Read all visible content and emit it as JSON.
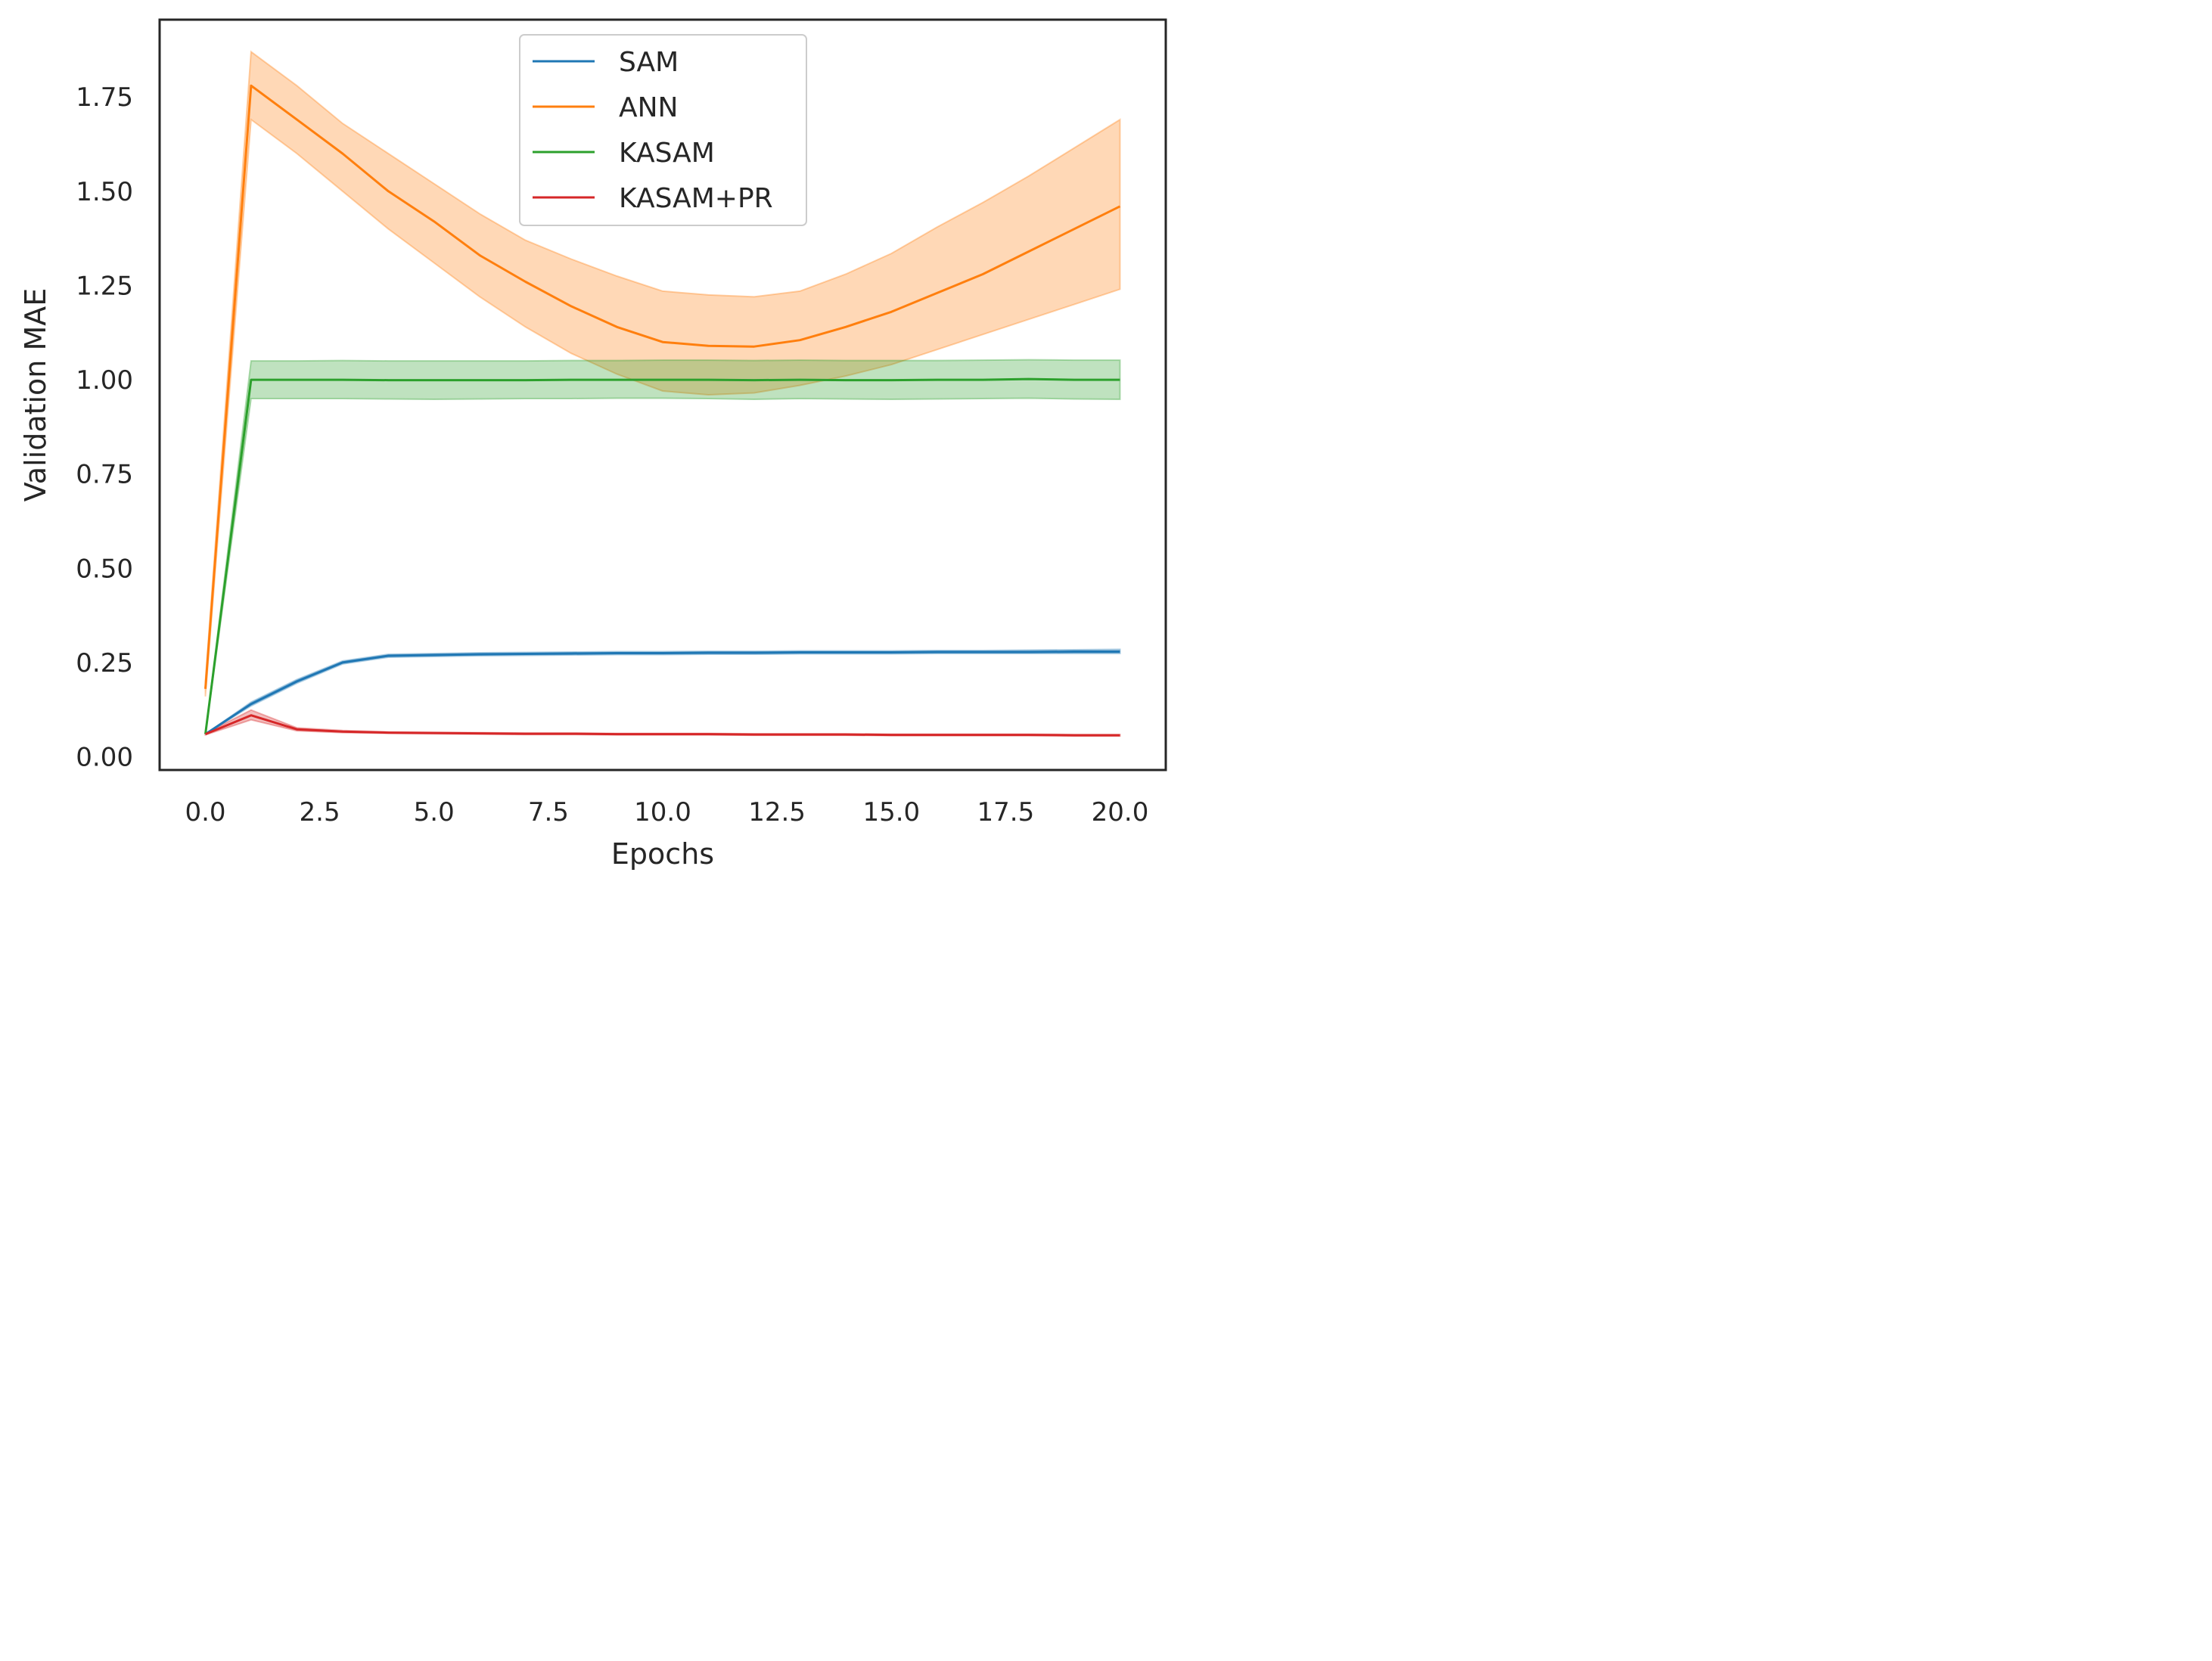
{
  "chart_data": {
    "type": "line",
    "title": "",
    "xlabel": "Epochs",
    "ylabel": "Validation MAE",
    "xlim": [
      -1.0,
      21.0
    ],
    "ylim": [
      -0.035,
      1.955
    ],
    "x_ticks": [
      0.0,
      2.5,
      5.0,
      7.5,
      10.0,
      12.5,
      15.0,
      17.5,
      20.0
    ],
    "x_tick_labels": [
      "0.0",
      "2.5",
      "5.0",
      "7.5",
      "10.0",
      "12.5",
      "15.0",
      "17.5",
      "20.0"
    ],
    "y_ticks": [
      0.0,
      0.25,
      0.5,
      0.75,
      1.0,
      1.25,
      1.5,
      1.75
    ],
    "y_tick_labels": [
      "0.00",
      "0.25",
      "0.50",
      "0.75",
      "1.00",
      "1.25",
      "1.50",
      "1.75"
    ],
    "grid": false,
    "legend_position": "top-center",
    "x": [
      0,
      1,
      2,
      3,
      4,
      5,
      6,
      7,
      8,
      9,
      10,
      11,
      12,
      13,
      14,
      15,
      16,
      17,
      18,
      19,
      20
    ],
    "series": [
      {
        "name": "SAM",
        "color": "#1f77b4",
        "values": [
          0.06,
          0.14,
          0.2,
          0.25,
          0.268,
          0.27,
          0.272,
          0.273,
          0.274,
          0.275,
          0.275,
          0.276,
          0.276,
          0.277,
          0.277,
          0.277,
          0.278,
          0.278,
          0.278,
          0.279,
          0.279
        ],
        "lower": [
          0.06,
          0.135,
          0.195,
          0.246,
          0.264,
          0.266,
          0.268,
          0.269,
          0.27,
          0.271,
          0.271,
          0.272,
          0.272,
          0.273,
          0.273,
          0.273,
          0.274,
          0.274,
          0.274,
          0.274,
          0.274
        ],
        "upper": [
          0.06,
          0.145,
          0.205,
          0.254,
          0.272,
          0.274,
          0.276,
          0.277,
          0.278,
          0.279,
          0.279,
          0.28,
          0.28,
          0.281,
          0.281,
          0.281,
          0.282,
          0.282,
          0.283,
          0.284,
          0.285
        ]
      },
      {
        "name": "ANN",
        "color": "#ff7f0e",
        "values": [
          0.18,
          1.78,
          1.69,
          1.6,
          1.5,
          1.42,
          1.33,
          1.26,
          1.195,
          1.14,
          1.1,
          1.09,
          1.088,
          1.105,
          1.14,
          1.18,
          1.23,
          1.28,
          1.34,
          1.4,
          1.46
        ],
        "lower": [
          0.16,
          1.69,
          1.6,
          1.5,
          1.4,
          1.31,
          1.22,
          1.14,
          1.07,
          1.015,
          0.97,
          0.96,
          0.965,
          0.985,
          1.01,
          1.04,
          1.08,
          1.12,
          1.16,
          1.2,
          1.24
        ],
        "upper": [
          0.2,
          1.87,
          1.78,
          1.68,
          1.6,
          1.52,
          1.44,
          1.37,
          1.32,
          1.275,
          1.235,
          1.225,
          1.22,
          1.235,
          1.28,
          1.335,
          1.405,
          1.47,
          1.54,
          1.615,
          1.69
        ]
      },
      {
        "name": "KASAM",
        "color": "#2ca02c",
        "values": [
          0.06,
          1.0,
          1.0,
          1.0,
          0.999,
          0.999,
          0.999,
          0.999,
          1.0,
          1.0,
          1.0,
          1.0,
          0.999,
          1.0,
          0.999,
          0.999,
          1.0,
          1.0,
          1.002,
          1.0,
          1.0
        ],
        "lower": [
          0.06,
          0.95,
          0.95,
          0.95,
          0.949,
          0.948,
          0.949,
          0.95,
          0.95,
          0.951,
          0.951,
          0.95,
          0.948,
          0.95,
          0.949,
          0.948,
          0.949,
          0.95,
          0.951,
          0.949,
          0.948
        ],
        "upper": [
          0.06,
          1.05,
          1.05,
          1.051,
          1.05,
          1.05,
          1.05,
          1.05,
          1.051,
          1.051,
          1.052,
          1.052,
          1.051,
          1.052,
          1.051,
          1.051,
          1.051,
          1.052,
          1.053,
          1.052,
          1.052
        ]
      },
      {
        "name": "KASAM+PR",
        "color": "#d62728",
        "values": [
          0.06,
          0.11,
          0.073,
          0.067,
          0.064,
          0.063,
          0.062,
          0.061,
          0.061,
          0.06,
          0.06,
          0.06,
          0.059,
          0.059,
          0.059,
          0.058,
          0.058,
          0.058,
          0.058,
          0.057,
          0.057
        ],
        "lower": [
          0.058,
          0.098,
          0.069,
          0.064,
          0.062,
          0.061,
          0.06,
          0.059,
          0.059,
          0.058,
          0.058,
          0.058,
          0.057,
          0.057,
          0.057,
          0.056,
          0.056,
          0.056,
          0.056,
          0.055,
          0.055
        ],
        "upper": [
          0.062,
          0.124,
          0.077,
          0.07,
          0.066,
          0.065,
          0.064,
          0.063,
          0.063,
          0.062,
          0.062,
          0.062,
          0.061,
          0.061,
          0.061,
          0.06,
          0.06,
          0.06,
          0.06,
          0.059,
          0.059
        ]
      }
    ]
  }
}
